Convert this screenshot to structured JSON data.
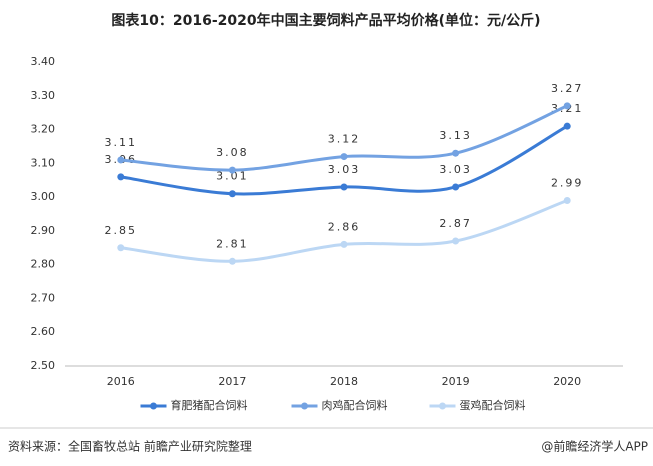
{
  "chart_data": {
    "type": "line",
    "title": "图表10：2016-2020年中国主要饲料产品平均价格(单位：元/公斤)",
    "categories": [
      "2016",
      "2017",
      "2018",
      "2019",
      "2020"
    ],
    "series": [
      {
        "name": "育肥猪配合饲料",
        "color": "#3a7bd5",
        "values": [
          3.06,
          3.01,
          3.03,
          3.03,
          3.21
        ]
      },
      {
        "name": "肉鸡配合饲料",
        "color": "#73a2e2",
        "values": [
          3.11,
          3.08,
          3.12,
          3.13,
          3.27
        ]
      },
      {
        "name": "蛋鸡配合饲料",
        "color": "#bcd7f4",
        "values": [
          2.85,
          2.81,
          2.86,
          2.87,
          2.99
        ]
      }
    ],
    "ylim": [
      2.5,
      3.4
    ],
    "yticks": [
      {
        "value": 2.5,
        "label": "2.50"
      },
      {
        "value": 2.6,
        "label": "2.60"
      },
      {
        "value": 2.7,
        "label": "2.70"
      },
      {
        "value": 2.8,
        "label": "2.80"
      },
      {
        "value": 2.9,
        "label": "2.90"
      },
      {
        "value": 3.0,
        "label": "3.00"
      },
      {
        "value": 3.1,
        "label": "3.10"
      },
      {
        "value": 3.2,
        "label": "3.20"
      },
      {
        "value": 3.3,
        "label": "3.30"
      },
      {
        "value": 3.4,
        "label": "3.40"
      }
    ],
    "grid": false,
    "legend": "bottom"
  },
  "source": "资料来源：全国畜牧总站 前瞻产业研究院整理",
  "credit": "@前瞻经济学人APP"
}
